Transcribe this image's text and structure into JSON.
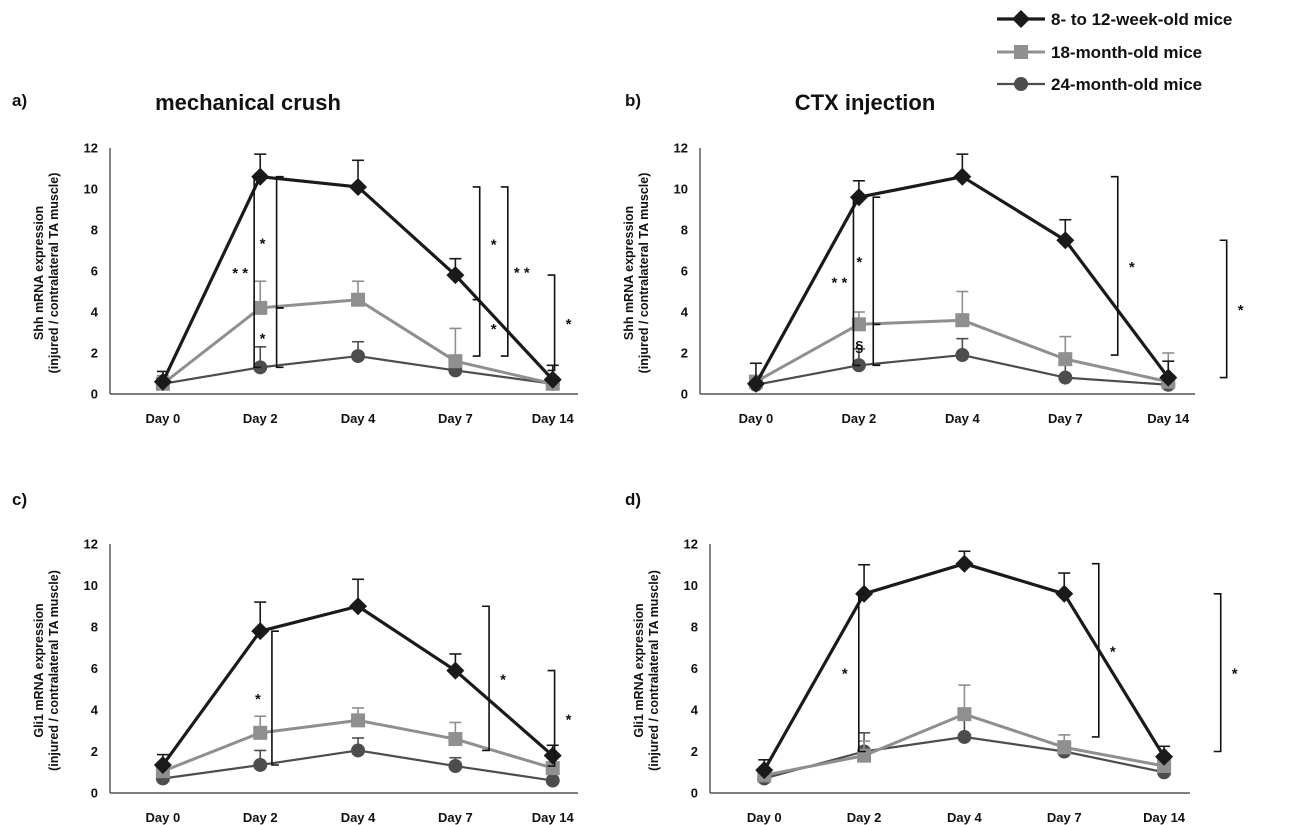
{
  "legend": {
    "items": [
      {
        "label": "8- to 12-week-old mice",
        "color": "#1a1a1a",
        "marker": "diamond"
      },
      {
        "label": "18-month-old mice",
        "color": "#8f8f8f",
        "marker": "square"
      },
      {
        "label": "24-month-old mice",
        "color": "#4d4d4d",
        "marker": "circle"
      }
    ]
  },
  "chart_data": [
    {
      "panel": "a)",
      "title": "mechanical crush",
      "type": "line",
      "categories": [
        "Day 0",
        "Day 2",
        "Day 4",
        "Day 7",
        "Day 14"
      ],
      "ylabel_line1": "Shh mRNA expression",
      "ylabel_line2": "(injured / contralateral TA muscle)",
      "ylim": [
        0,
        12
      ],
      "yticks": [
        0,
        2,
        4,
        6,
        8,
        10,
        12
      ],
      "series": [
        {
          "name": "8- to 12-week-old mice",
          "values": [
            0.6,
            10.6,
            10.1,
            5.8,
            0.7
          ],
          "errors": [
            0.5,
            1.1,
            1.3,
            0.8,
            0.7
          ]
        },
        {
          "name": "18-month-old mice",
          "values": [
            0.5,
            4.2,
            4.6,
            1.6,
            0.5
          ],
          "errors": [
            0.4,
            1.3,
            0.9,
            1.6,
            0.3
          ]
        },
        {
          "name": "24-month-old mice",
          "values": [
            0.5,
            1.3,
            1.85,
            1.15,
            0.5
          ],
          "errors": [
            0.3,
            1.0,
            0.7,
            0.6,
            0.2
          ]
        }
      ],
      "annotations": [
        {
          "x": 1.54,
          "y1": 10.6,
          "y2": 1.3,
          "label": "* *"
        },
        {
          "x": 1.78,
          "y1": 10.6,
          "y2": 4.2,
          "label": "*"
        },
        {
          "x": 1.78,
          "y1": 4.2,
          "y2": 1.3,
          "label": "*"
        },
        {
          "x": 3.95,
          "y1": 10.1,
          "y2": 4.6,
          "label": "*"
        },
        {
          "x": 3.95,
          "y1": 4.6,
          "y2": 1.85,
          "label": "*"
        },
        {
          "x": 4.25,
          "y1": 10.1,
          "y2": 1.85,
          "label": "* *"
        },
        {
          "x": 4.75,
          "y1": 5.8,
          "y2": 1.15,
          "label": "*"
        }
      ]
    },
    {
      "panel": "b)",
      "title": "CTX injection",
      "type": "line",
      "categories": [
        "Day 0",
        "Day 2",
        "Day 4",
        "Day 7",
        "Day 14"
      ],
      "ylabel_line1": "Shh mRNA expression",
      "ylabel_line2": "(injured / contralateral TA muscle)",
      "ylim": [
        0,
        12
      ],
      "yticks": [
        0,
        2,
        4,
        6,
        8,
        10,
        12
      ],
      "series": [
        {
          "name": "8- to 12-week-old mice",
          "values": [
            0.5,
            9.6,
            10.6,
            7.5,
            0.8
          ],
          "errors": [
            1.0,
            0.8,
            1.1,
            1.0,
            0.8
          ]
        },
        {
          "name": "18-month-old mice",
          "values": [
            0.6,
            3.4,
            3.6,
            1.7,
            0.6
          ],
          "errors": [
            0.3,
            0.6,
            1.4,
            1.1,
            1.4
          ]
        },
        {
          "name": "24-month-old mice",
          "values": [
            0.45,
            1.4,
            1.9,
            0.8,
            0.45
          ],
          "errors": [
            0.2,
            0.8,
            0.8,
            0.7,
            0.3
          ]
        }
      ],
      "annotations": [
        {
          "x": 1.55,
          "y1": 9.6,
          "y2": 1.4,
          "label": "* *"
        },
        {
          "x": 1.75,
          "y1": 9.6,
          "y2": 3.4,
          "label": "*"
        },
        {
          "x": 1.75,
          "y1": 3.4,
          "y2": 1.4,
          "label": "§"
        },
        {
          "x": 4.22,
          "y1": 10.6,
          "y2": 1.9,
          "label": "*"
        },
        {
          "x": 5.32,
          "y1": 7.5,
          "y2": 0.8,
          "label": "*"
        }
      ]
    },
    {
      "panel": "c)",
      "title": "",
      "type": "line",
      "categories": [
        "Day 0",
        "Day 2",
        "Day 4",
        "Day 7",
        "Day 14"
      ],
      "ylabel_line1": "Gli1 mRNA expression",
      "ylabel_line2": "(injured / contralateral TA muscle)",
      "ylim": [
        0,
        12
      ],
      "yticks": [
        0,
        2,
        4,
        6,
        8,
        10,
        12
      ],
      "series": [
        {
          "name": "8- to 12-week-old mice",
          "values": [
            1.35,
            7.8,
            9.0,
            5.9,
            1.8
          ],
          "errors": [
            0.5,
            1.4,
            1.3,
            0.8,
            0.5
          ]
        },
        {
          "name": "18-month-old mice",
          "values": [
            1.05,
            2.9,
            3.5,
            2.6,
            1.2
          ],
          "errors": [
            0.3,
            0.8,
            0.6,
            0.8,
            0.5
          ]
        },
        {
          "name": "24-month-old mice",
          "values": [
            0.7,
            1.35,
            2.05,
            1.3,
            0.6
          ],
          "errors": [
            0.2,
            0.7,
            0.6,
            0.4,
            0.3
          ]
        }
      ],
      "annotations": [
        {
          "x": 1.73,
          "y1": 7.8,
          "y2": 1.35,
          "label": "*"
        },
        {
          "x": 4.05,
          "y1": 9.0,
          "y2": 2.05,
          "label": "*"
        },
        {
          "x": 4.75,
          "y1": 5.9,
          "y2": 1.3,
          "label": "*"
        }
      ]
    },
    {
      "panel": "d)",
      "title": "",
      "type": "line",
      "categories": [
        "Day 0",
        "Day 2",
        "Day 4",
        "Day 7",
        "Day 14"
      ],
      "ylabel_line1": "Gli1 mRNA expression",
      "ylabel_line2": "(injured / contralateral TA muscle)",
      "ylim": [
        0,
        12
      ],
      "yticks": [
        0,
        2,
        4,
        6,
        8,
        10,
        12
      ],
      "series": [
        {
          "name": "8- to 12-week-old mice",
          "values": [
            1.1,
            9.6,
            11.05,
            9.6,
            1.75
          ],
          "errors": [
            0.5,
            1.4,
            0.6,
            1.0,
            0.5
          ]
        },
        {
          "name": "18-month-old mice",
          "values": [
            0.85,
            1.8,
            3.8,
            2.2,
            1.3
          ],
          "errors": [
            0.3,
            0.7,
            1.4,
            0.6,
            0.5
          ]
        },
        {
          "name": "24-month-old mice",
          "values": [
            0.7,
            2.0,
            2.7,
            2.0,
            1.0
          ],
          "errors": [
            0.2,
            0.9,
            0.9,
            0.5,
            0.5
          ]
        }
      ],
      "annotations": [
        {
          "x": 1.55,
          "y1": 9.6,
          "y2": 2.0,
          "label": "*"
        },
        {
          "x": 4.05,
          "y1": 11.05,
          "y2": 2.7,
          "label": "*"
        },
        {
          "x": 5.32,
          "y1": 9.6,
          "y2": 2.0,
          "label": "*"
        }
      ]
    }
  ]
}
